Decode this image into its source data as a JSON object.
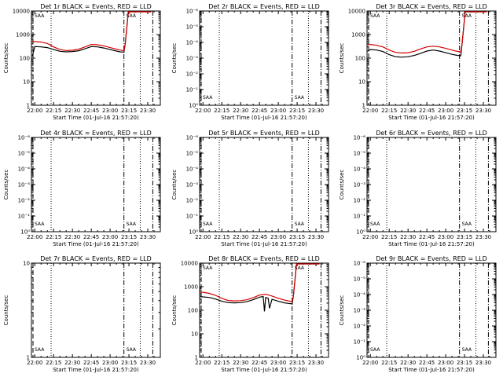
{
  "chart_data": [
    {
      "id": "1r",
      "type": "line",
      "title": "Det 1r BLACK = Events, RED = LLD",
      "scale": "log",
      "yticks": [
        "1",
        "10",
        "100",
        "1000",
        "10000"
      ],
      "ylim": [
        1,
        10000
      ],
      "ylabel": "Counts/sec",
      "xlabel": "Start Time (01-Jul-16 21:57:20)",
      "xticks": [
        "22:00",
        "22:15",
        "22:30",
        "22:45",
        "23:00",
        "23:15",
        "23:30"
      ],
      "markers": [
        "SAA",
        "SAA"
      ],
      "rise_at": "23:12",
      "series": [
        {
          "name": "BLACK = Events",
          "color": "#000000",
          "x": [
            "21:58",
            "22:00",
            "22:05",
            "22:10",
            "22:15",
            "22:20",
            "22:25",
            "22:30",
            "22:35",
            "22:40",
            "22:45",
            "22:50",
            "22:55",
            "23:00",
            "23:05",
            "23:08",
            "23:10",
            "23:11"
          ],
          "y": [
            120,
            310,
            300,
            280,
            230,
            195,
            185,
            190,
            205,
            250,
            310,
            300,
            270,
            230,
            200,
            185,
            180,
            178
          ]
        },
        {
          "name": "RED = LLD",
          "color": "#d40000",
          "x": [
            "21:58",
            "22:00",
            "22:05",
            "22:10",
            "22:15",
            "22:20",
            "22:25",
            "22:30",
            "22:35",
            "22:40",
            "22:45",
            "22:50",
            "22:55",
            "23:00",
            "23:05",
            "23:08",
            "23:10",
            "23:11"
          ],
          "y": [
            520,
            500,
            480,
            420,
            300,
            230,
            210,
            215,
            240,
            300,
            380,
            370,
            330,
            280,
            240,
            220,
            210,
            205
          ]
        }
      ]
    },
    {
      "id": "2r",
      "type": "line",
      "title": "Det 2r BLACK = Events, RED = LLD",
      "scale": "log",
      "yticks": [
        "10⁰",
        "10⁻¹",
        "10⁻²",
        "10⁻³",
        "10⁻⁴",
        "10⁻⁵",
        "10⁻⁶"
      ],
      "ylim": [
        1,
        1e-06
      ],
      "ylabel": "Counts/sec",
      "xlabel": "Start Time (01-Jul-16 21:57:20)",
      "xticks": [
        "22:00",
        "22:15",
        "22:30",
        "22:45",
        "23:00",
        "23:15",
        "23:30"
      ],
      "markers": [
        "SAA",
        "SAA"
      ],
      "series": []
    },
    {
      "id": "3r",
      "type": "line",
      "title": "Det 3r BLACK = Events, RED = LLD",
      "scale": "log",
      "yticks": [
        "1",
        "10",
        "100",
        "1000",
        "10000"
      ],
      "ylim": [
        1,
        10000
      ],
      "ylabel": "Counts/sec",
      "xlabel": "Start Time (01-Jul-16 21:57:20)",
      "xticks": [
        "22:00",
        "22:15",
        "22:30",
        "22:45",
        "23:00",
        "23:15",
        "23:30"
      ],
      "markers": [
        "SAA",
        "SAA"
      ],
      "rise_at": "23:13",
      "series": [
        {
          "name": "BLACK = Events",
          "color": "#000000",
          "x": [
            "21:58",
            "22:00",
            "22:05",
            "22:10",
            "22:15",
            "22:20",
            "22:25",
            "22:30",
            "22:35",
            "22:40",
            "22:45",
            "22:50",
            "22:55",
            "23:00",
            "23:05",
            "23:08",
            "23:10",
            "23:12"
          ],
          "y": [
            200,
            230,
            220,
            190,
            140,
            115,
            110,
            115,
            130,
            160,
            200,
            220,
            200,
            170,
            145,
            135,
            130,
            125
          ]
        },
        {
          "name": "RED = LLD",
          "color": "#d40000",
          "x": [
            "21:58",
            "22:00",
            "22:05",
            "22:10",
            "22:15",
            "22:20",
            "22:25",
            "22:30",
            "22:35",
            "22:40",
            "22:45",
            "22:50",
            "22:55",
            "23:00",
            "23:05",
            "23:08",
            "23:10",
            "23:12"
          ],
          "y": [
            360,
            380,
            350,
            300,
            220,
            175,
            165,
            170,
            195,
            245,
            300,
            320,
            300,
            260,
            220,
            200,
            190,
            185
          ]
        }
      ]
    },
    {
      "id": "4r",
      "type": "line",
      "title": "Det 4r BLACK = Events, RED = LLD",
      "scale": "log",
      "yticks": [
        "10⁰",
        "10⁻¹",
        "10⁻²",
        "10⁻³",
        "10⁻⁴",
        "10⁻⁵",
        "10⁻⁶"
      ],
      "ylim": [
        1,
        1e-06
      ],
      "ylabel": "Counts/sec",
      "xlabel": "Start Time (01-Jul-16 21:57:20)",
      "xticks": [
        "22:00",
        "22:15",
        "22:30",
        "22:45",
        "23:00",
        "23:15",
        "23:30"
      ],
      "markers": [
        "SAA",
        "SAA"
      ],
      "series": []
    },
    {
      "id": "5r",
      "type": "line",
      "title": "Det 5r BLACK = Events, RED = LLD",
      "scale": "log",
      "yticks": [
        "10⁰",
        "10⁻¹",
        "10⁻²",
        "10⁻³",
        "10⁻⁴",
        "10⁻⁵",
        "10⁻⁶"
      ],
      "ylim": [
        1,
        1e-06
      ],
      "ylabel": "Counts/sec",
      "xlabel": "Start Time (01-Jul-16 21:57:20)",
      "xticks": [
        "22:00",
        "22:15",
        "22:30",
        "22:45",
        "23:00",
        "23:15",
        "23:30"
      ],
      "markers": [
        "SAA",
        "SAA"
      ],
      "series": []
    },
    {
      "id": "6r",
      "type": "line",
      "title": "Det 6r BLACK = Events, RED = LLD",
      "scale": "log",
      "yticks": [
        "10⁰",
        "10⁻¹",
        "10⁻²",
        "10⁻³",
        "10⁻⁴",
        "10⁻⁵",
        "10⁻⁶"
      ],
      "ylim": [
        1,
        1e-06
      ],
      "ylabel": "Counts/sec",
      "xlabel": "Start Time (01-Jul-16 21:57:20)",
      "xticks": [
        "22:00",
        "22:15",
        "22:30",
        "22:45",
        "23:00",
        "23:15",
        "23:30"
      ],
      "markers": [
        "SAA",
        "SAA"
      ],
      "series": []
    },
    {
      "id": "7r",
      "type": "line",
      "title": "Det 7r BLACK = Events, RED = LLD",
      "scale": "log",
      "yticks": [
        "1",
        "10"
      ],
      "ylim": [
        1,
        10
      ],
      "ylabel": "Counts/sec",
      "xlabel": "Start Time (01-Jul-16 21:57:20)",
      "xticks": [
        "22:00",
        "22:15",
        "22:30",
        "22:45",
        "23:00",
        "23:15",
        "23:30"
      ],
      "markers": [
        "SAA",
        "SAA"
      ],
      "series": []
    },
    {
      "id": "8r",
      "type": "line",
      "title": "Det 8r BLACK = Events, RED = LLD",
      "scale": "log",
      "yticks": [
        "1",
        "10",
        "100",
        "1000",
        "10000"
      ],
      "ylim": [
        1,
        10000
      ],
      "ylabel": "Counts/sec",
      "xlabel": "Start Time (01-Jul-16 21:57:20)",
      "xticks": [
        "22:00",
        "22:15",
        "22:30",
        "22:45",
        "23:00",
        "23:15",
        "23:30"
      ],
      "markers": [
        "SAA",
        "SAA"
      ],
      "rise_at": "23:12",
      "series": [
        {
          "name": "BLACK = Events",
          "color": "#000000",
          "x": [
            "21:58",
            "22:00",
            "22:05",
            "22:10",
            "22:15",
            "22:20",
            "22:25",
            "22:30",
            "22:35",
            "22:40",
            "22:45",
            "22:48",
            "22:49",
            "22:50",
            "22:52",
            "22:53",
            "22:55",
            "23:00",
            "23:05",
            "23:08",
            "23:10",
            "23:11"
          ],
          "y": [
            380,
            370,
            350,
            300,
            240,
            210,
            205,
            210,
            230,
            280,
            360,
            380,
            90,
            350,
            320,
            120,
            290,
            240,
            205,
            195,
            190,
            188
          ]
        },
        {
          "name": "RED = LLD",
          "color": "#d40000",
          "x": [
            "21:58",
            "22:00",
            "22:05",
            "22:10",
            "22:15",
            "22:20",
            "22:25",
            "22:30",
            "22:35",
            "22:40",
            "22:45",
            "22:50",
            "22:55",
            "23:00",
            "23:05",
            "23:08",
            "23:10",
            "23:11"
          ],
          "y": [
            600,
            580,
            520,
            430,
            320,
            260,
            250,
            255,
            280,
            340,
            440,
            480,
            400,
            320,
            270,
            250,
            240,
            236
          ]
        }
      ]
    },
    {
      "id": "9r",
      "type": "line",
      "title": "Det 9r BLACK = Events, RED = LLD",
      "scale": "log",
      "yticks": [
        "10⁰",
        "10⁻¹",
        "10⁻²",
        "10⁻³",
        "10⁻⁴",
        "10⁻⁵",
        "10⁻⁶"
      ],
      "ylim": [
        1,
        1e-06
      ],
      "ylabel": "Counts/sec",
      "xlabel": "Start Time (01-Jul-16 21:57:20)",
      "xticks": [
        "22:00",
        "22:15",
        "22:30",
        "22:45",
        "23:00",
        "23:15",
        "23:30"
      ],
      "markers": [
        "SAA",
        "SAA"
      ],
      "series": []
    }
  ]
}
